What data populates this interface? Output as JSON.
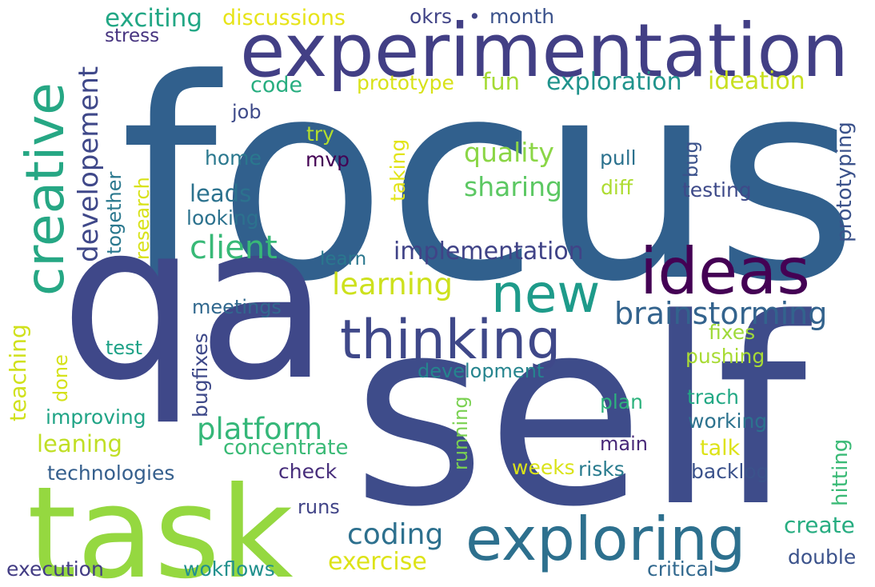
{
  "words": [
    {
      "text": "focus",
      "color": "#31608d"
    },
    {
      "text": "qa",
      "color": "#3f4889"
    },
    {
      "text": "self",
      "color": "#3e4c8a"
    },
    {
      "text": "task",
      "color": "#95d840"
    },
    {
      "text": "experimentation",
      "color": "#423f85"
    },
    {
      "text": "exploring",
      "color": "#2d708e"
    },
    {
      "text": "creative",
      "color": "#26a784"
    },
    {
      "text": "ideas",
      "color": "#440154"
    },
    {
      "text": "new",
      "color": "#1e9b8a"
    },
    {
      "text": "thinking",
      "color": "#3f4889"
    },
    {
      "text": "brainstorming",
      "color": "#33638d"
    },
    {
      "text": "developement",
      "color": "#3f4889"
    },
    {
      "text": "platform",
      "color": "#35b779"
    },
    {
      "text": "client",
      "color": "#38b977"
    },
    {
      "text": "learning",
      "color": "#cde11d"
    },
    {
      "text": "coding",
      "color": "#2d708e"
    },
    {
      "text": "implementation",
      "color": "#404387"
    },
    {
      "text": "exploration",
      "color": "#20938c"
    },
    {
      "text": "ideation",
      "color": "#c8e020"
    },
    {
      "text": "prototype",
      "color": "#d8e219"
    },
    {
      "text": "fun",
      "color": "#a5db36"
    },
    {
      "text": "quality",
      "color": "#8bd646"
    },
    {
      "text": "sharing",
      "color": "#5cc863"
    },
    {
      "text": "exciting",
      "color": "#22a785"
    },
    {
      "text": "discussions",
      "color": "#e7e419"
    },
    {
      "text": "okrs",
      "color": "#414487"
    },
    {
      "text": "month",
      "color": "#3b528b"
    },
    {
      "text": "stress",
      "color": "#46337f"
    },
    {
      "text": "code",
      "color": "#28ae80"
    },
    {
      "text": "job",
      "color": "#3e4a89"
    },
    {
      "text": "try",
      "color": "#b5de2b"
    },
    {
      "text": "mvp",
      "color": "#440154"
    },
    {
      "text": "home",
      "color": "#2a788e"
    },
    {
      "text": "taking",
      "color": "#e2e418"
    },
    {
      "text": "pull",
      "color": "#2c728e"
    },
    {
      "text": "diff",
      "color": "#addc30"
    },
    {
      "text": "bug",
      "color": "#3b528b"
    },
    {
      "text": "testing",
      "color": "#3e4a89"
    },
    {
      "text": "prototyping",
      "color": "#3b528b"
    },
    {
      "text": "leads",
      "color": "#2c728e"
    },
    {
      "text": "looking",
      "color": "#2c728e"
    },
    {
      "text": "together",
      "color": "#2a788e"
    },
    {
      "text": "research",
      "color": "#d8e219"
    },
    {
      "text": "learn",
      "color": "#2a778e"
    },
    {
      "text": "meetings",
      "color": "#31688e"
    },
    {
      "text": "fixes",
      "color": "#9fda3a"
    },
    {
      "text": "pushing",
      "color": "#a8db34"
    },
    {
      "text": "teaching",
      "color": "#d0e11c"
    },
    {
      "text": "done",
      "color": "#d5e21a"
    },
    {
      "text": "test",
      "color": "#1fa287"
    },
    {
      "text": "bugfixes",
      "color": "#3e4989"
    },
    {
      "text": "development",
      "color": "#25848e"
    },
    {
      "text": "running",
      "color": "#7ad151"
    },
    {
      "text": "plan",
      "color": "#2db27d"
    },
    {
      "text": "trach",
      "color": "#22a884"
    },
    {
      "text": "working",
      "color": "#2c728e"
    },
    {
      "text": "hitting",
      "color": "#3aba76"
    },
    {
      "text": "improving",
      "color": "#20a486"
    },
    {
      "text": "leaning",
      "color": "#c0df25"
    },
    {
      "text": "concentrate",
      "color": "#3aba76"
    },
    {
      "text": "talk",
      "color": "#dde318"
    },
    {
      "text": "main",
      "color": "#482878"
    },
    {
      "text": "technologies",
      "color": "#355f8d"
    },
    {
      "text": "check",
      "color": "#472d7b"
    },
    {
      "text": "weeks",
      "color": "#dae319"
    },
    {
      "text": "risks",
      "color": "#297b8e"
    },
    {
      "text": "backlog",
      "color": "#3b528b"
    },
    {
      "text": "runs",
      "color": "#414487"
    },
    {
      "text": "create",
      "color": "#27ad81"
    },
    {
      "text": "exercise",
      "color": "#dde318"
    },
    {
      "text": "double",
      "color": "#3b528b"
    },
    {
      "text": "critical",
      "color": "#31688e"
    },
    {
      "text": "execution",
      "color": "#433d84"
    },
    {
      "text": "wokflows",
      "color": "#21908d"
    }
  ]
}
